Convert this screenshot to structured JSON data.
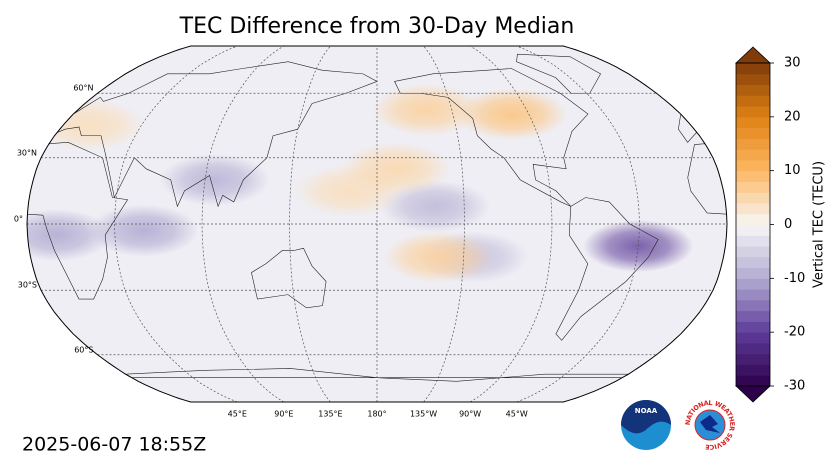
{
  "title": "TEC Difference from 30-Day Median",
  "map": {
    "lat_ticks": [
      {
        "value": 60,
        "label": "60°N"
      },
      {
        "value": 30,
        "label": "30°N"
      },
      {
        "value": 0,
        "label": "0°"
      },
      {
        "value": -30,
        "label": "30°S"
      },
      {
        "value": -60,
        "label": "60°S"
      }
    ],
    "lon_ticks": [
      {
        "value": 45,
        "label": "45°E"
      },
      {
        "value": 90,
        "label": "90°E"
      },
      {
        "value": 135,
        "label": "135°E"
      },
      {
        "value": 180,
        "label": "180°"
      },
      {
        "value": -135,
        "label": "135°W"
      },
      {
        "value": -90,
        "label": "90°W"
      },
      {
        "value": -45,
        "label": "45°W"
      }
    ],
    "field": [
      {
        "lon": 60,
        "lat": -3,
        "value": -10
      },
      {
        "lon": 95,
        "lat": 20,
        "value": -9
      },
      {
        "lon": 15,
        "lat": -5,
        "value": -10
      },
      {
        "lon": -45,
        "lat": -10,
        "value": -18
      },
      {
        "lon": -150,
        "lat": 8,
        "value": -8
      },
      {
        "lon": -130,
        "lat": -15,
        "value": -7
      },
      {
        "lon": -100,
        "lat": 50,
        "value": 8
      },
      {
        "lon": -150,
        "lat": 52,
        "value": 6
      },
      {
        "lon": 15,
        "lat": 45,
        "value": 4
      },
      {
        "lon": -148,
        "lat": -15,
        "value": 6
      },
      {
        "lon": 166,
        "lat": 15,
        "value": 4
      },
      {
        "lon": -170,
        "lat": 25,
        "value": 5
      }
    ]
  },
  "colorbar": {
    "label": "Vertical TEC (TECU)",
    "range": [
      -30,
      30
    ],
    "ticks": [
      30,
      20,
      10,
      0,
      -10,
      -20,
      -30
    ],
    "colors": [
      "#2d004b",
      "#5e3c99",
      "#b2abd2",
      "#f7f7f7",
      "#fdb863",
      "#e08214",
      "#7f3b08"
    ]
  },
  "timestamp": "2025-06-07 18:55Z",
  "logos": {
    "noaa": "NOAA",
    "nws": "NATIONAL WEATHER SERVICE"
  }
}
